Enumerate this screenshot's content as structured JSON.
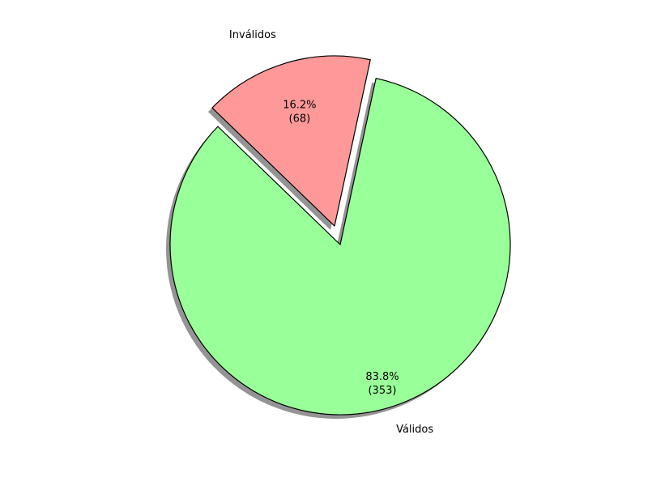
{
  "chart_data": {
    "type": "pie",
    "title": "",
    "slices": [
      {
        "label": "Válidos",
        "value": 353,
        "percent_label": "83.8%",
        "count_label": "(353)",
        "color": "#99ff99",
        "exploded": false
      },
      {
        "label": "Inválidos",
        "value": 68,
        "percent_label": "16.2%",
        "count_label": "(68)",
        "color": "#ff9999",
        "exploded": true
      }
    ],
    "shadow": true,
    "edge_color": "#000000",
    "legend": "none"
  }
}
